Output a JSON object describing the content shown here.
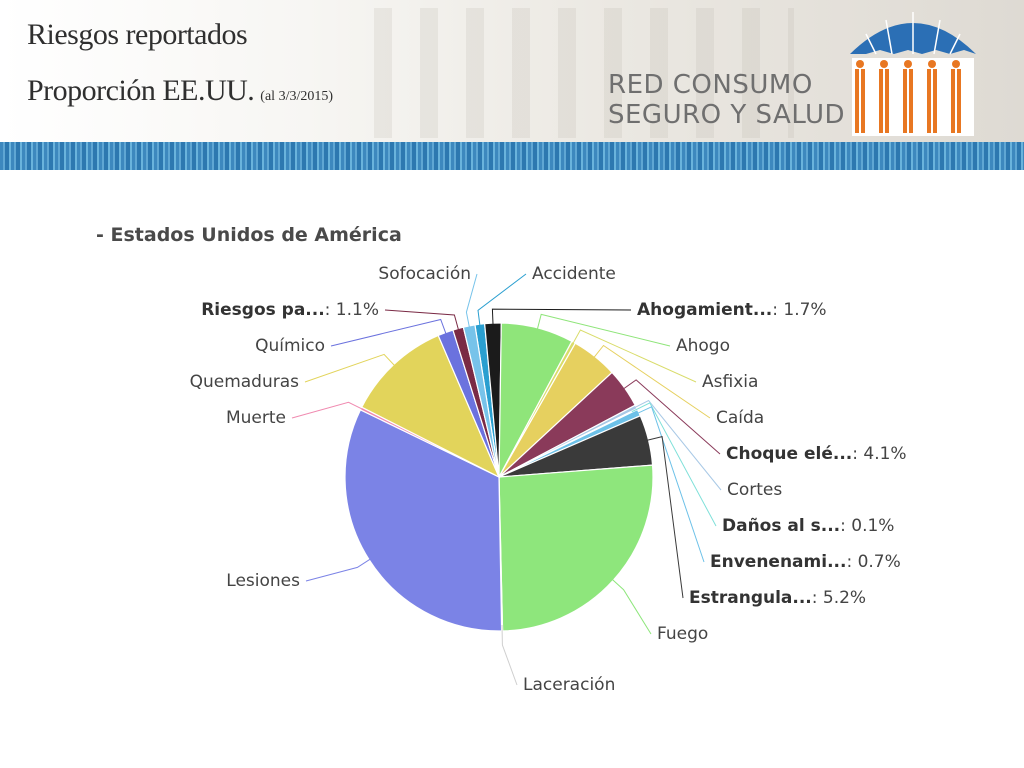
{
  "slide": {
    "title_line1": "Riesgos reportados",
    "title_line2": "Proporción EE.UU.",
    "date_note": "(al 3/3/2015)",
    "brand_line1": "RED CONSUMO",
    "brand_line2": "SEGURO Y SALUD"
  },
  "colors": {
    "blue_stripe": "#3d88be",
    "logo_umbrella": "#2b6fb5",
    "logo_people": "#e87722"
  },
  "chart_data": {
    "type": "pie",
    "title": "- Estados Unidos de América",
    "slices": [
      {
        "label": "Accidente",
        "value": 1.0,
        "color": "#2a9fd0"
      },
      {
        "label": "Ahogamient...: 1.7%",
        "value": 1.7,
        "color": "#1b1b1b"
      },
      {
        "label": "Ahogo",
        "value": 7.5,
        "color": "#8fe57a"
      },
      {
        "label": "Asfixia",
        "value": 0.4,
        "color": "#d9dc6a"
      },
      {
        "label": "Caída",
        "value": 4.8,
        "color": "#e6d05f"
      },
      {
        "label": "Choque elé...: 4.1%",
        "value": 4.1,
        "color": "#8a3a5a"
      },
      {
        "label": "Cortes",
        "value": 0.4,
        "color": "#a9c9e6"
      },
      {
        "label": "Daños al s...: 0.1%",
        "value": 0.1,
        "color": "#7fe0d9"
      },
      {
        "label": "Envenenami...: 0.7%",
        "value": 0.7,
        "color": "#6dc1e8"
      },
      {
        "label": "Estrangula...: 5.2%",
        "value": 5.2,
        "color": "#3a3a3a"
      },
      {
        "label": "Fuego",
        "value": 25.5,
        "color": "#8ee67c"
      },
      {
        "label": "Laceración",
        "value": 0.1,
        "color": "#cfcfcf"
      },
      {
        "label": "Lesiones",
        "value": 32.0,
        "color": "#7b83e6"
      },
      {
        "label": "Muerte",
        "value": 0.3,
        "color": "#f08ab0"
      },
      {
        "label": "Quemaduras",
        "value": 10.9,
        "color": "#e2d45b"
      },
      {
        "label": "Químico",
        "value": 1.6,
        "color": "#6b72de"
      },
      {
        "label": "Riesgos pa...: 1.1%",
        "value": 1.1,
        "color": "#7a2a45"
      },
      {
        "label": "Sofocación",
        "value": 1.2,
        "color": "#77c3ea"
      }
    ]
  }
}
